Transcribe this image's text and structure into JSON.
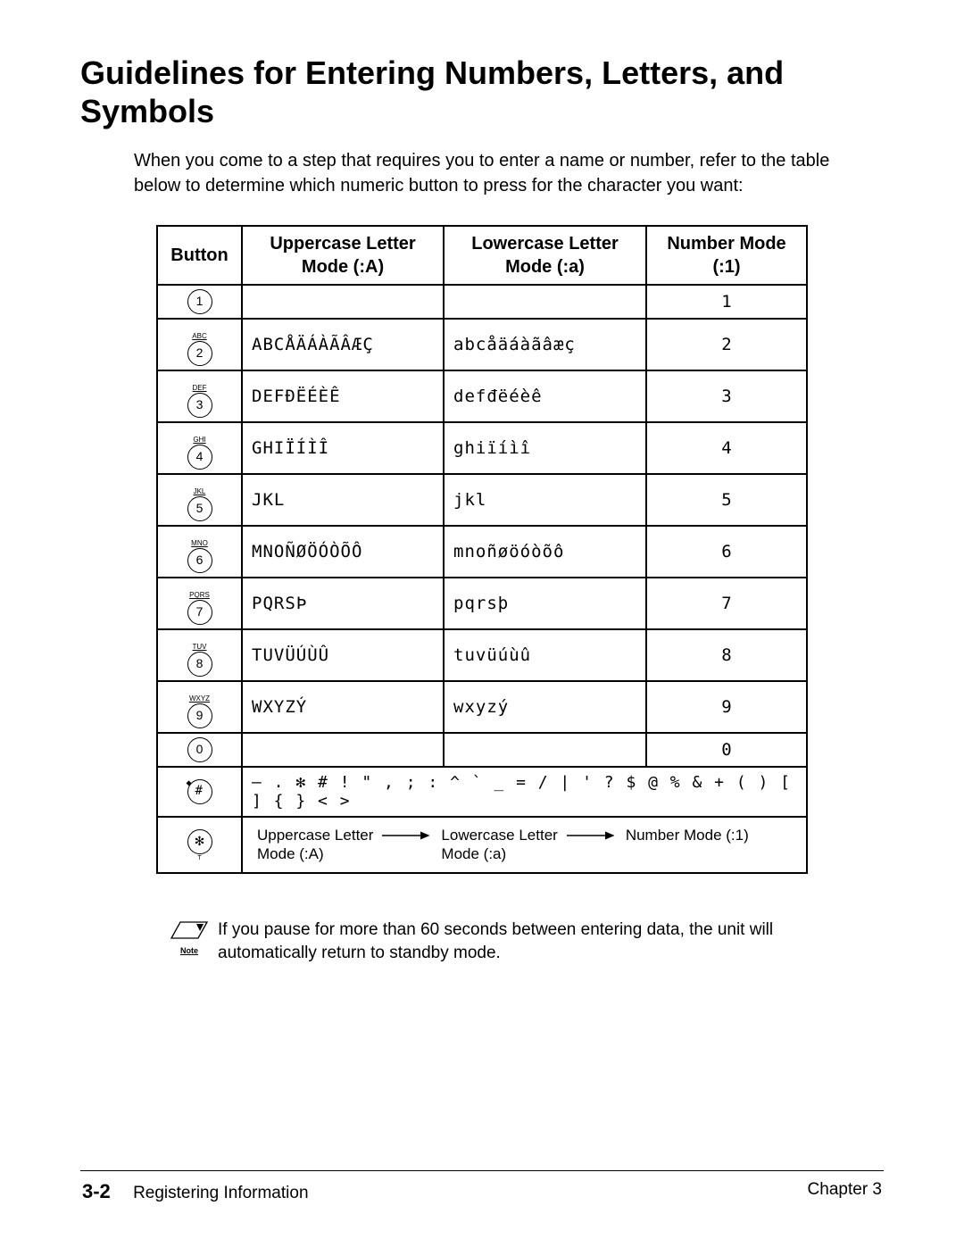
{
  "title": "Guidelines for Entering Numbers, Letters, and Symbols",
  "intro": "When you come to a step that requires you to enter a name or number, refer to the table below to determine which numeric button to press for the character you want:",
  "table": {
    "headers": {
      "button": "Button",
      "upper_line1": "Uppercase Letter",
      "upper_line2": "Mode (:A)",
      "lower_line1": "Lowercase Letter",
      "lower_line2": "Mode (:a)",
      "num_line1": "Number Mode",
      "num_line2": "(:1)"
    },
    "rows": [
      {
        "label": "",
        "digit": "1",
        "upper": "",
        "lower": "",
        "num": "1"
      },
      {
        "label": "ABC",
        "digit": "2",
        "upper": "ABCÅÄÁÀÃÂÆÇ",
        "lower": "abcåäáàãâæç",
        "num": "2"
      },
      {
        "label": "DEF",
        "digit": "3",
        "upper": "DEFÐËÉÈÊ",
        "lower": "defđëéèê",
        "num": "3"
      },
      {
        "label": "GHI",
        "digit": "4",
        "upper": "GHIÏÍÌÎ",
        "lower": "ghiïíìî",
        "num": "4"
      },
      {
        "label": "JKL",
        "digit": "5",
        "upper": "JKL",
        "lower": "jkl",
        "num": "5"
      },
      {
        "label": "MNO",
        "digit": "6",
        "upper": "MNOÑØÖÓÒÕÔ",
        "lower": "mnoñøöóòõô",
        "num": "6"
      },
      {
        "label": "PQRS",
        "digit": "7",
        "upper": "PQRSÞ",
        "lower": "pqrsþ",
        "num": "7"
      },
      {
        "label": "TUV",
        "digit": "8",
        "upper": "TUVÜÚÙÛ",
        "lower": "tuvüúùû",
        "num": "8"
      },
      {
        "label": "WXYZ",
        "digit": "9",
        "upper": "WXYZÝ",
        "lower": "wxyzý",
        "num": "9"
      },
      {
        "label": "",
        "digit": "0",
        "upper": "",
        "lower": "",
        "num": "0"
      }
    ],
    "symbols_digit": "#",
    "symbols": "– . ✻ # ! \" , ; : ^ ` _ = / | ' ? $ @ % & + ( ) [ ] { } < >",
    "mode_digit": "✻",
    "mode_sub": "T",
    "mode_upper_l1": "Uppercase Letter",
    "mode_upper_l2": "Mode (:A)",
    "mode_lower_l1": "Lowercase Letter",
    "mode_lower_l2": "Mode (:a)",
    "mode_num": "Number Mode (:1)"
  },
  "note": {
    "label": "Note",
    "text": "If you pause for more than 60 seconds between entering data, the unit will automatically return to standby mode."
  },
  "footer": {
    "page": "3-2",
    "section": "Registering Information",
    "chapter": "Chapter 3"
  }
}
